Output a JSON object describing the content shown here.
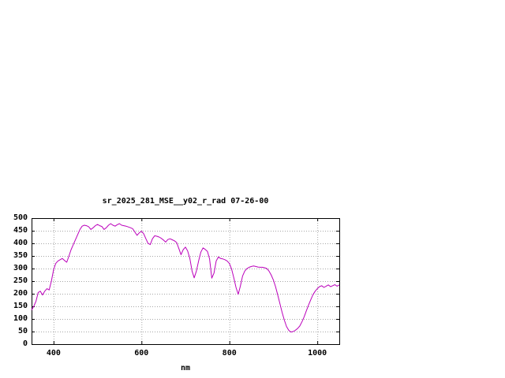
{
  "style": {
    "background": "#ffffff",
    "line_color": "#bb00bb",
    "grid_color": "#a6a6a6",
    "axis_color": "#000000",
    "text_color": "#000000"
  },
  "chart_data": {
    "type": "line",
    "title": "sr_2025_281_MSE__y02_r_rad 07-26-00",
    "xlabel": "nm",
    "ylabel": "",
    "xlim": [
      350,
      1050
    ],
    "ylim": [
      0,
      500
    ],
    "x_ticks": [
      400,
      600,
      800,
      1000
    ],
    "y_ticks": [
      0,
      50,
      100,
      150,
      200,
      250,
      300,
      350,
      400,
      450,
      500
    ],
    "grid": true,
    "legend": "none",
    "series": [
      {
        "name": "sr_2025_281_MSE__y02_r_rad",
        "x": [
          350,
          355,
          360,
          365,
          370,
          375,
          380,
          385,
          390,
          395,
          400,
          405,
          410,
          415,
          420,
          425,
          430,
          435,
          440,
          445,
          450,
          455,
          460,
          465,
          470,
          475,
          480,
          485,
          490,
          495,
          500,
          505,
          510,
          515,
          520,
          525,
          530,
          535,
          540,
          545,
          550,
          555,
          560,
          565,
          570,
          575,
          580,
          585,
          590,
          595,
          600,
          605,
          610,
          615,
          620,
          625,
          630,
          635,
          640,
          645,
          650,
          655,
          660,
          665,
          670,
          675,
          680,
          685,
          690,
          695,
          700,
          705,
          710,
          715,
          720,
          725,
          730,
          735,
          740,
          745,
          750,
          755,
          760,
          765,
          770,
          775,
          780,
          785,
          790,
          795,
          800,
          805,
          810,
          815,
          820,
          825,
          830,
          835,
          840,
          845,
          850,
          855,
          860,
          865,
          870,
          875,
          880,
          885,
          890,
          895,
          900,
          905,
          910,
          915,
          920,
          925,
          930,
          935,
          940,
          945,
          950,
          955,
          960,
          965,
          970,
          975,
          980,
          985,
          990,
          995,
          1000,
          1005,
          1010,
          1015,
          1020,
          1025,
          1030,
          1035,
          1040,
          1045,
          1050
        ],
        "y": [
          135,
          150,
          170,
          205,
          210,
          195,
          210,
          220,
          215,
          250,
          295,
          320,
          330,
          335,
          340,
          332,
          325,
          350,
          375,
          395,
          415,
          435,
          455,
          468,
          472,
          470,
          466,
          455,
          462,
          470,
          475,
          470,
          467,
          455,
          462,
          472,
          478,
          472,
          468,
          474,
          478,
          472,
          470,
          468,
          465,
          462,
          458,
          445,
          432,
          442,
          448,
          438,
          418,
          400,
          395,
          418,
          430,
          428,
          425,
          420,
          413,
          405,
          415,
          418,
          414,
          410,
          403,
          380,
          355,
          375,
          385,
          370,
          340,
          290,
          263,
          290,
          330,
          365,
          382,
          376,
          368,
          338,
          262,
          282,
          330,
          346,
          340,
          338,
          335,
          330,
          320,
          298,
          263,
          225,
          198,
          230,
          270,
          290,
          300,
          305,
          308,
          310,
          308,
          306,
          305,
          305,
          303,
          300,
          290,
          275,
          255,
          228,
          195,
          160,
          125,
          95,
          70,
          55,
          48,
          50,
          55,
          62,
          72,
          88,
          108,
          132,
          155,
          176,
          196,
          210,
          220,
          228,
          232,
          225,
          230,
          235,
          228,
          232,
          236,
          230,
          235
        ]
      }
    ]
  }
}
